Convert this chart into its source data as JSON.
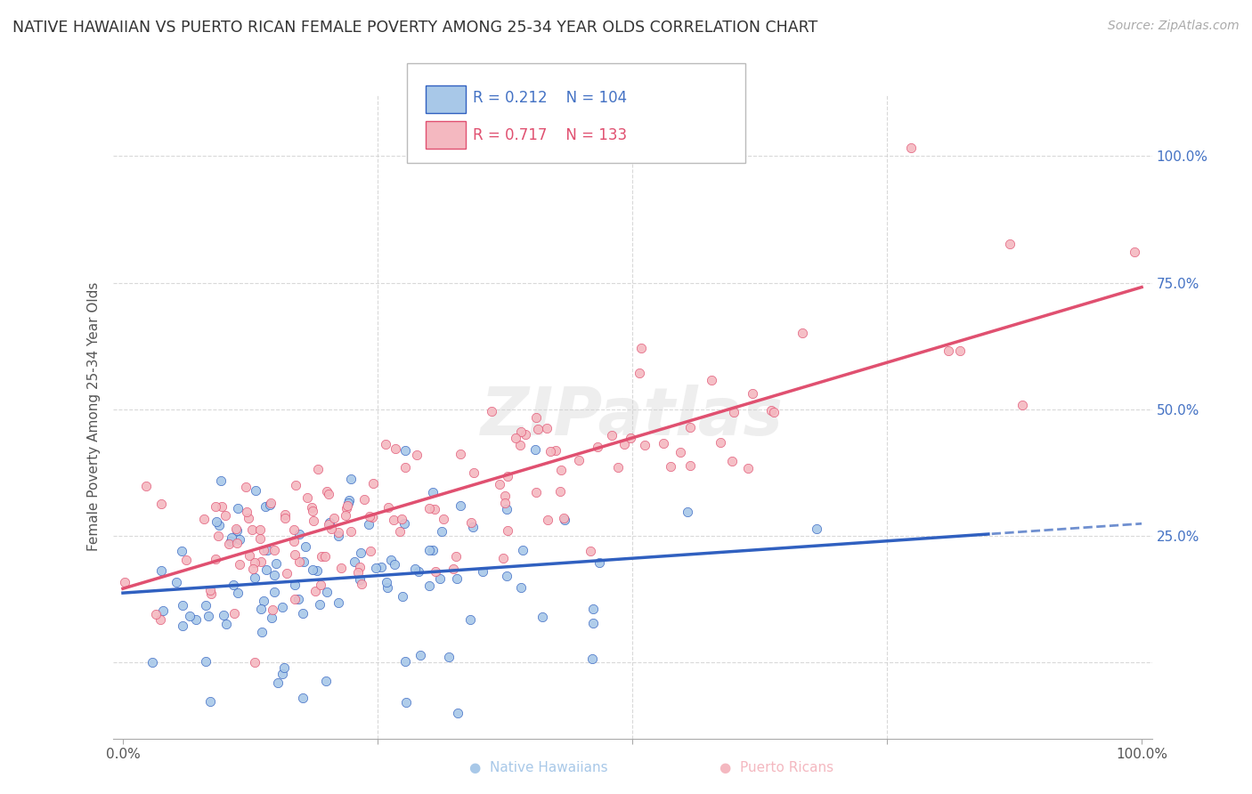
{
  "title": "NATIVE HAWAIIAN VS PUERTO RICAN FEMALE POVERTY AMONG 25-34 YEAR OLDS CORRELATION CHART",
  "source": "Source: ZipAtlas.com",
  "ylabel": "Female Poverty Among 25-34 Year Olds",
  "hawaiian_color": "#a8c8e8",
  "puerto_rican_color": "#f4b8c0",
  "hawaiian_line_color": "#3060c0",
  "puerto_rican_line_color": "#e05070",
  "hawaiian_line_dash": "solid",
  "puerto_rican_line_dash": "solid",
  "dashed_extension_color": "#7090d0",
  "right_tick_color": "#4472c4",
  "legend_R_hawaiian": "R = 0.212",
  "legend_N_hawaiian": "N = 104",
  "legend_R_puerto": "R = 0.717",
  "legend_N_puerto": "N = 133",
  "hawaiian_R": 0.212,
  "hawaiian_N": 104,
  "puerto_rican_R": 0.717,
  "puerto_rican_N": 133,
  "hawaiian_seed": 42,
  "puerto_rican_seed": 123,
  "grid_color": "#d0d0d0",
  "watermark_color": "#e8e8e8"
}
